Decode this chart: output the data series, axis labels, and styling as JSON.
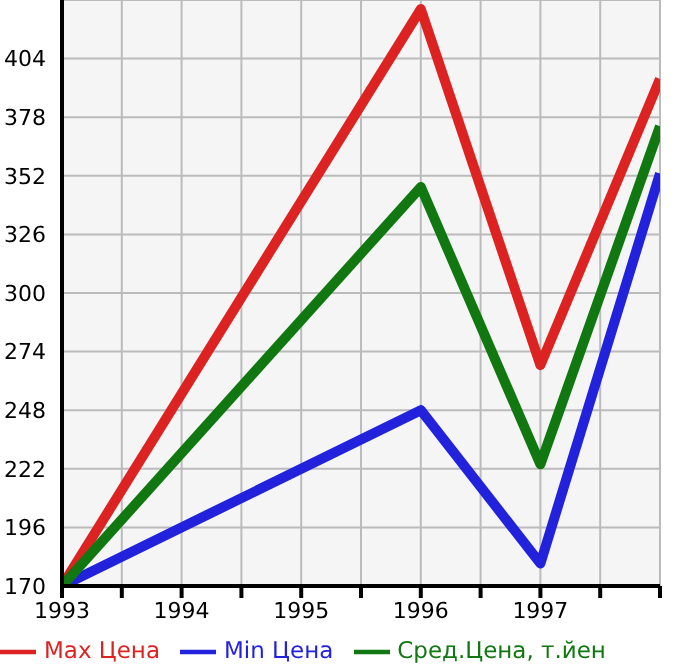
{
  "chart_data": {
    "type": "line",
    "x": [
      1993,
      1996,
      1997,
      1998
    ],
    "series": [
      {
        "name": "Max Цена",
        "color": "#dd2222",
        "values": [
          170,
          426,
          268,
          395
        ]
      },
      {
        "name": "Min Цена",
        "color": "#2222dd",
        "values": [
          170,
          248,
          180,
          353
        ]
      },
      {
        "name": "Сред.Цена, т.йен",
        "color": "#117711",
        "values": [
          170,
          347,
          224,
          374
        ]
      }
    ],
    "xlim": [
      1993,
      1998
    ],
    "xticks": [
      1993,
      {
        "value": 1993.5,
        "label": null
      },
      1994,
      {
        "value": 1994.5,
        "label": null
      },
      1995,
      {
        "value": 1995.5,
        "label": null
      },
      1996,
      {
        "value": 1996.5,
        "label": null
      },
      1997,
      {
        "value": 1997.5,
        "label": null
      },
      {
        "value": 1998,
        "label": null
      }
    ],
    "ylim": [
      170,
      430
    ],
    "yticks": [
      170,
      196,
      222,
      248,
      274,
      300,
      326,
      352,
      378,
      404
    ],
    "grid": true,
    "legend": "bottom",
    "marker": "none",
    "line_style": "solid"
  }
}
